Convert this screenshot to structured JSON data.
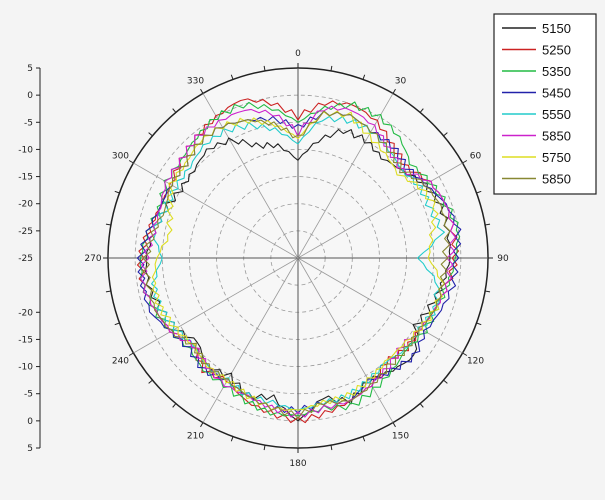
{
  "chart_data": {
    "type": "line",
    "subtype": "polar",
    "angle_unit": "degrees",
    "angle_direction": "clockwise",
    "angle_zero": "top",
    "angle_tick_labels": [
      "0",
      "30",
      "60",
      "90",
      "120",
      "150",
      "180",
      "210",
      "240",
      "270",
      "300",
      "330"
    ],
    "radial_axis": {
      "range": [
        -30,
        5
      ],
      "ticks": [
        5,
        0,
        -5,
        -10,
        -15,
        -20,
        -25
      ],
      "tick_labels_upper": [
        "5",
        "0",
        "-5",
        "-10",
        "-15",
        "-20",
        "-25"
      ],
      "tick_labels_lower": [
        "-20",
        "-15",
        "-10",
        "-5",
        "0",
        "5"
      ],
      "center_label": "-25"
    },
    "grid": true,
    "legend_position": "top-right",
    "angles": [
      0,
      10,
      20,
      30,
      40,
      50,
      60,
      70,
      80,
      90,
      100,
      110,
      120,
      130,
      140,
      150,
      160,
      170,
      180,
      190,
      200,
      210,
      220,
      230,
      240,
      250,
      260,
      270,
      280,
      290,
      300,
      310,
      320,
      330,
      340,
      350
    ],
    "series": [
      {
        "name": "5150",
        "color": "#222222",
        "values": [
          -12,
          -8,
          -5,
          -5,
          -6,
          -5,
          -3,
          -2,
          -2,
          -2,
          -3,
          -4,
          -5,
          -2,
          -3,
          -4,
          -2,
          -4,
          0,
          -4,
          -3,
          -5,
          -4,
          -6,
          -4,
          -3,
          -2,
          -2,
          -3,
          -4,
          -5,
          -5,
          -4,
          -5,
          -8,
          -9
        ]
      },
      {
        "name": "5250",
        "color": "#cc2222",
        "values": [
          -4,
          -1,
          0,
          -1,
          -3,
          -4,
          -2,
          -1,
          -1,
          -1,
          -2,
          -3,
          -4,
          -4,
          -5,
          -3,
          -2,
          -1,
          0,
          -1,
          -2,
          -4,
          -3,
          -5,
          -3,
          -2,
          -1,
          -1,
          -2,
          -3,
          -3,
          -2,
          -1,
          0,
          1,
          -1
        ]
      },
      {
        "name": "5350",
        "color": "#22bb44",
        "values": [
          -5,
          -2,
          0,
          0,
          -1,
          -3,
          -2,
          -1,
          0,
          -1,
          -2,
          -3,
          -3,
          -4,
          -3,
          -2,
          -1,
          -2,
          -1,
          -1,
          -2,
          -3,
          -3,
          -4,
          -3,
          -2,
          -1,
          -1,
          -2,
          -3,
          -2,
          -2,
          -1,
          0,
          0,
          -2
        ]
      },
      {
        "name": "5450",
        "color": "#2222aa",
        "values": [
          -6,
          -3,
          -2,
          -3,
          -3,
          -4,
          -3,
          -1,
          0,
          -1,
          -1,
          -2,
          -3,
          -2,
          -3,
          -4,
          -2,
          -3,
          -2,
          -2,
          -3,
          -4,
          -3,
          -4,
          -3,
          -1,
          -1,
          -1,
          -2,
          -3,
          -3,
          -3,
          -2,
          -2,
          -3,
          -4
        ]
      },
      {
        "name": "5550",
        "color": "#22cccc",
        "values": [
          -9,
          -4,
          -3,
          -3,
          -4,
          -5,
          -4,
          -4,
          -3,
          -8,
          -4,
          -3,
          -4,
          -4,
          -5,
          -4,
          -3,
          -3,
          -2,
          -3,
          -3,
          -4,
          -4,
          -5,
          -4,
          -3,
          -3,
          -5,
          -3,
          -4,
          -4,
          -4,
          -3,
          -3,
          -4,
          -6
        ]
      },
      {
        "name": "5850",
        "color": "#cc22cc",
        "values": [
          -7,
          -2,
          -1,
          -2,
          -4,
          -5,
          -2,
          -1,
          -1,
          -2,
          -2,
          -3,
          -4,
          -5,
          -4,
          -3,
          -2,
          -2,
          -1,
          -2,
          -3,
          -3,
          -4,
          -5,
          -3,
          -2,
          -1,
          -2,
          -3,
          -3,
          -2,
          -2,
          -1,
          -1,
          -1,
          -3
        ]
      },
      {
        "name": "5750",
        "color": "#dddd22",
        "values": [
          -8,
          -3,
          -2,
          -4,
          -5,
          -6,
          -4,
          -3,
          -5,
          -6,
          -3,
          -3,
          -4,
          -5,
          -5,
          -4,
          -3,
          -3,
          -2,
          -2,
          -3,
          -4,
          -4,
          -5,
          -4,
          -3,
          -3,
          -4,
          -6,
          -5,
          -3,
          -3,
          -2,
          -2,
          -3,
          -5
        ]
      },
      {
        "name": "5850",
        "color": "#888833",
        "values": [
          -8,
          -3,
          -2,
          -3,
          -4,
          -5,
          -3,
          -2,
          -2,
          -3,
          -3,
          -3,
          -4,
          -4,
          -4,
          -3,
          -2,
          -3,
          -1,
          -2,
          -3,
          -4,
          -4,
          -5,
          -3,
          -2,
          -2,
          -2,
          -3,
          -4,
          -3,
          -3,
          -2,
          -2,
          -3,
          -5
        ]
      }
    ]
  }
}
